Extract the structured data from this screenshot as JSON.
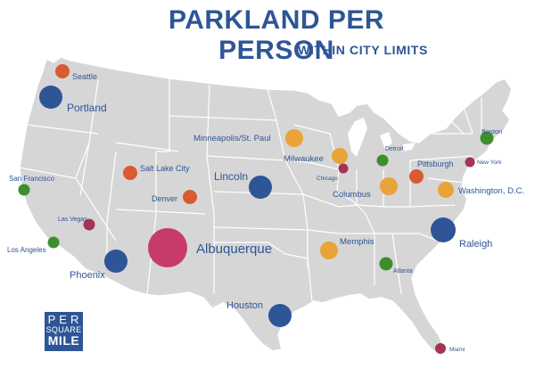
{
  "title": "PARKLAND PER PERSON",
  "subtitle": "WITHIN CITY LIMITS",
  "logo": {
    "line1": "PER",
    "line2": "SQUARE",
    "line3": "MILE"
  },
  "colors": {
    "map_fill": "#d6d6d6",
    "map_border": "#ffffff",
    "title": "#2e5596",
    "blue": "#2e5596",
    "orange": "#e9a338",
    "red": "#d95b30",
    "green": "#3e8e2f",
    "maroon": "#a53352",
    "pink": "#c63b6b"
  },
  "cities": [
    {
      "name": "Seattle",
      "color": "red",
      "size": "small"
    },
    {
      "name": "Portland",
      "color": "blue",
      "size": "large"
    },
    {
      "name": "San Francisco",
      "color": "green",
      "size": "small"
    },
    {
      "name": "Las Vegas",
      "color": "maroon",
      "size": "small"
    },
    {
      "name": "Los Angeles",
      "color": "green",
      "size": "small"
    },
    {
      "name": "Phoenix",
      "color": "blue",
      "size": "large"
    },
    {
      "name": "Salt Lake City",
      "color": "red",
      "size": "small"
    },
    {
      "name": "Denver",
      "color": "red",
      "size": "small"
    },
    {
      "name": "Albuquerque",
      "color": "pink",
      "size": "largest"
    },
    {
      "name": "Lincoln",
      "color": "blue",
      "size": "large"
    },
    {
      "name": "Houston",
      "color": "blue",
      "size": "large"
    },
    {
      "name": "Minneapolis/St. Paul",
      "color": "orange",
      "size": "medium"
    },
    {
      "name": "Milwaukee",
      "color": "orange",
      "size": "medium"
    },
    {
      "name": "Chicago",
      "color": "maroon",
      "size": "small"
    },
    {
      "name": "Detroit",
      "color": "green",
      "size": "small"
    },
    {
      "name": "Columbus",
      "color": "orange",
      "size": "medium"
    },
    {
      "name": "Pittsburgh",
      "color": "red",
      "size": "small"
    },
    {
      "name": "New York",
      "color": "maroon",
      "size": "small"
    },
    {
      "name": "Boston",
      "color": "green",
      "size": "small"
    },
    {
      "name": "Washington, D.C.",
      "color": "orange",
      "size": "medium"
    },
    {
      "name": "Raleigh",
      "color": "blue",
      "size": "large"
    },
    {
      "name": "Memphis",
      "color": "orange",
      "size": "medium"
    },
    {
      "name": "Atlanta",
      "color": "green",
      "size": "small"
    },
    {
      "name": "Miami",
      "color": "maroon",
      "size": "small"
    }
  ]
}
